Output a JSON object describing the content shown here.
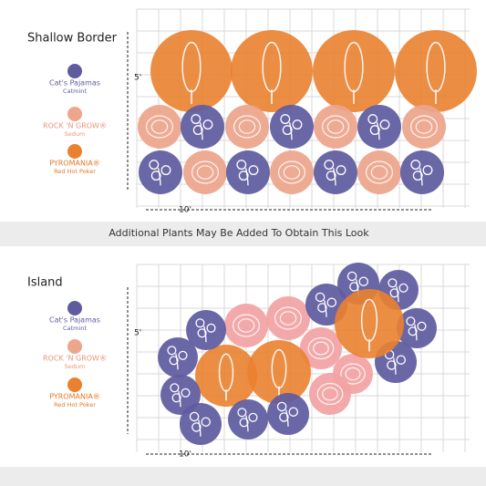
{
  "shallow_border": {
    "title": "Shallow Border",
    "legend": [
      {
        "name": "Cat's Pajamas",
        "sub": "Catmint"
      },
      {
        "name": "ROCK 'N GROW®",
        "sub": "Sedum"
      },
      {
        "name": "PYROMANIA®",
        "sub": "Red Hot Poker"
      }
    ],
    "height_label": "5'",
    "width_label": "10'"
  },
  "note": "Additional Plants May Be Added To Obtain This Look",
  "island": {
    "title": "Island",
    "legend": [
      {
        "name": "Cat's Pajamas",
        "sub": "Catmint"
      },
      {
        "name": "ROCK 'N GROW®",
        "sub": "Sedum"
      },
      {
        "name": "PYROMANIA®",
        "sub": "Red Hot Poker"
      }
    ],
    "height_label": "5'",
    "width_label": "10'"
  }
}
